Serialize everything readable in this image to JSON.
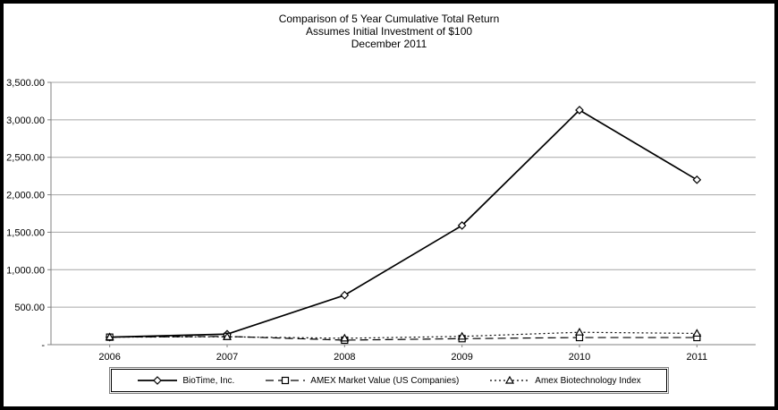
{
  "title": {
    "line1": "Comparison of 5 Year Cumulative  Total Return",
    "line2": "Assumes Initial Investment of $100",
    "line3": "December 2011"
  },
  "chart_data": {
    "type": "line",
    "title": "Comparison of 5 Year Cumulative Total Return, Assumes Initial Investment of $100, December 2011",
    "categories": [
      "2006",
      "2007",
      "2008",
      "2009",
      "2010",
      "2011"
    ],
    "series": [
      {
        "name": "BioTime, Inc.",
        "marker": "diamond",
        "line": "solid",
        "values": [
          100,
          140,
          660,
          1590,
          3130,
          2200
        ]
      },
      {
        "name": "AMEX Market Value (US Companies)",
        "marker": "square",
        "line": "dashed",
        "values": [
          100,
          110,
          60,
          80,
          95,
          95
        ]
      },
      {
        "name": "Amex Biotechnology Index",
        "marker": "triangle",
        "line": "dotted",
        "values": [
          100,
          105,
          85,
          110,
          165,
          150
        ]
      }
    ],
    "xlabel": "",
    "ylabel": "",
    "ylim": [
      0,
      3500
    ],
    "ytick_step": 500,
    "ytick_labels": [
      "-",
      "500.00",
      "1,000.00",
      "1,500.00",
      "2,000.00",
      "2,500.00",
      "3,000.00",
      "3,500.00"
    ],
    "grid": true,
    "legend_position": "bottom",
    "colors": {
      "line": "#000000",
      "grid": "#a6a6a6",
      "axis": "#808080"
    }
  }
}
